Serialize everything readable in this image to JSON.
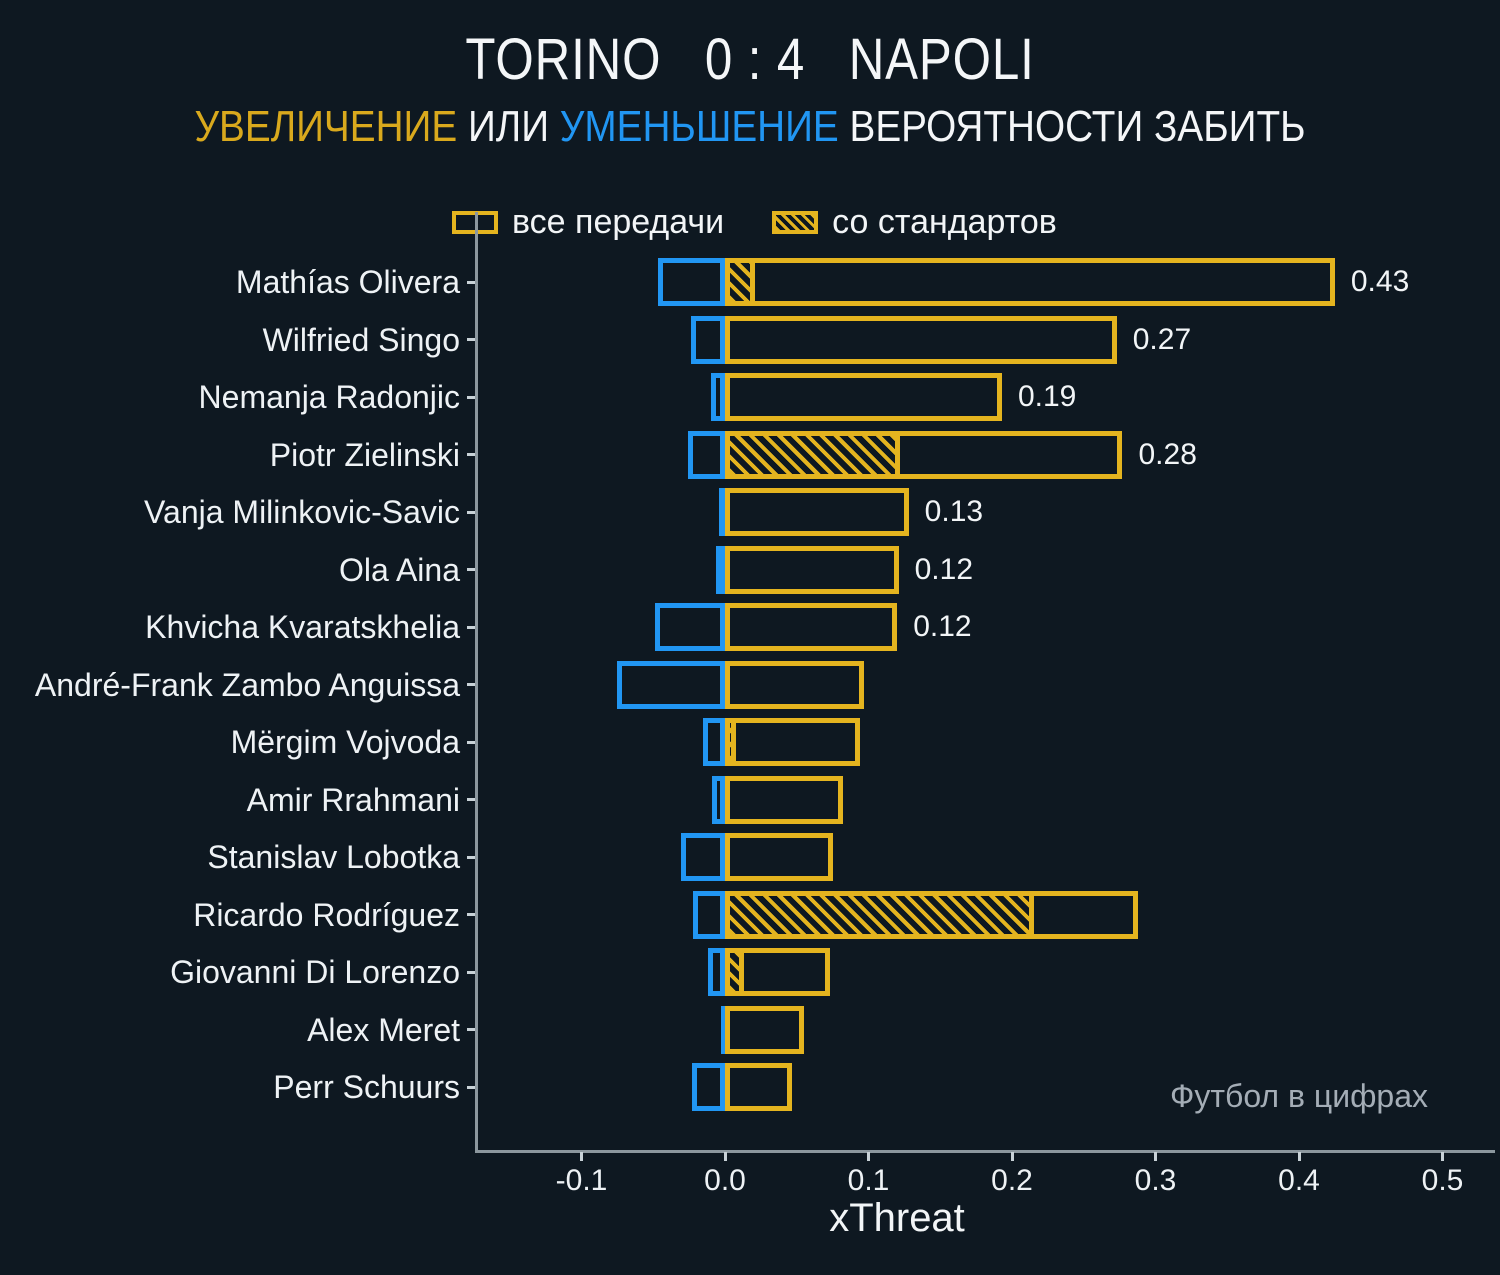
{
  "title": "TORINO   0 : 4   NAPOLI",
  "subtitle_parts": [
    {
      "text": "УВЕЛИЧЕНИЕ",
      "color": "#d9a91d"
    },
    {
      "text": " ИЛИ ",
      "color": "#f4f6f8"
    },
    {
      "text": "УМЕНЬШЕНИЕ",
      "color": "#2196f3"
    },
    {
      "text": " ВЕРОЯТНОСТИ ЗАБИТЬ",
      "color": "#f4f6f8"
    }
  ],
  "legend": {
    "all_passes_label": "все передачи",
    "set_pieces_label": "со стандартов"
  },
  "watermark": "Футбол в цифрах",
  "chart_data": {
    "type": "bar",
    "orientation": "horizontal",
    "title": "TORINO 0 : 4 NAPOLI",
    "subtitle": "УВЕЛИЧЕНИЕ ИЛИ УМЕНЬШЕНИЕ ВЕРОЯТНОСТИ ЗАБИТЬ",
    "xlabel": "xThreat",
    "xticks": [
      "-0.1",
      "0.0",
      "0.1",
      "0.2",
      "0.3",
      "0.4",
      "0.5"
    ],
    "xtick_values": [
      -0.1,
      0.0,
      0.1,
      0.2,
      0.3,
      0.4,
      0.5
    ],
    "xlim": [
      -0.174,
      0.535
    ],
    "grid": false,
    "legend_position": "top-center",
    "legend_entries": [
      "все передачи",
      "со стандартов"
    ],
    "colors": {
      "increase_yellow": "#e4b41f",
      "decrease_blue": "#2196f3",
      "background": "#0e1821",
      "axis": "#8c979e"
    },
    "players": [
      {
        "name": "Mathías Olivera",
        "decrease": -0.047,
        "set_pieces": 0.021,
        "increase_total": 0.425,
        "label": "0.43"
      },
      {
        "name": "Wilfried Singo",
        "decrease": -0.024,
        "set_pieces": 0,
        "increase_total": 0.273,
        "label": "0.27"
      },
      {
        "name": "Nemanja Radonjic",
        "decrease": -0.01,
        "set_pieces": 0,
        "increase_total": 0.193,
        "label": "0.19"
      },
      {
        "name": "Piotr Zielinski",
        "decrease": -0.026,
        "set_pieces": 0.122,
        "increase_total": 0.277,
        "label": "0.28"
      },
      {
        "name": "Vanja Milinkovic-Savic",
        "decrease": -0.004,
        "set_pieces": 0,
        "increase_total": 0.128,
        "label": "0.13"
      },
      {
        "name": "Ola Aina",
        "decrease": -0.006,
        "set_pieces": 0,
        "increase_total": 0.121,
        "label": "0.12"
      },
      {
        "name": "Khvicha Kvaratskhelia",
        "decrease": -0.049,
        "set_pieces": 0,
        "increase_total": 0.12,
        "label": "0.12"
      },
      {
        "name": "André-Frank Zambo Anguissa",
        "decrease": -0.075,
        "set_pieces": 0,
        "increase_total": 0.097,
        "label": null
      },
      {
        "name": "Mërgim Vojvoda",
        "decrease": -0.015,
        "set_pieces": 0.008,
        "increase_total": 0.094,
        "label": null
      },
      {
        "name": "Amir Rrahmani",
        "decrease": -0.009,
        "set_pieces": 0,
        "increase_total": 0.082,
        "label": null
      },
      {
        "name": "Stanislav Lobotka",
        "decrease": -0.031,
        "set_pieces": 0,
        "increase_total": 0.075,
        "label": null
      },
      {
        "name": "Ricardo Rodríguez",
        "decrease": -0.022,
        "set_pieces": 0.215,
        "increase_total": 0.288,
        "label": null
      },
      {
        "name": "Giovanni Di Lorenzo",
        "decrease": -0.012,
        "set_pieces": 0.013,
        "increase_total": 0.073,
        "label": null
      },
      {
        "name": "Alex Meret",
        "decrease": -0.003,
        "set_pieces": 0,
        "increase_total": 0.055,
        "label": null
      },
      {
        "name": "Perr Schuurs",
        "decrease": -0.023,
        "set_pieces": 0,
        "increase_total": 0.047,
        "label": null
      }
    ]
  }
}
